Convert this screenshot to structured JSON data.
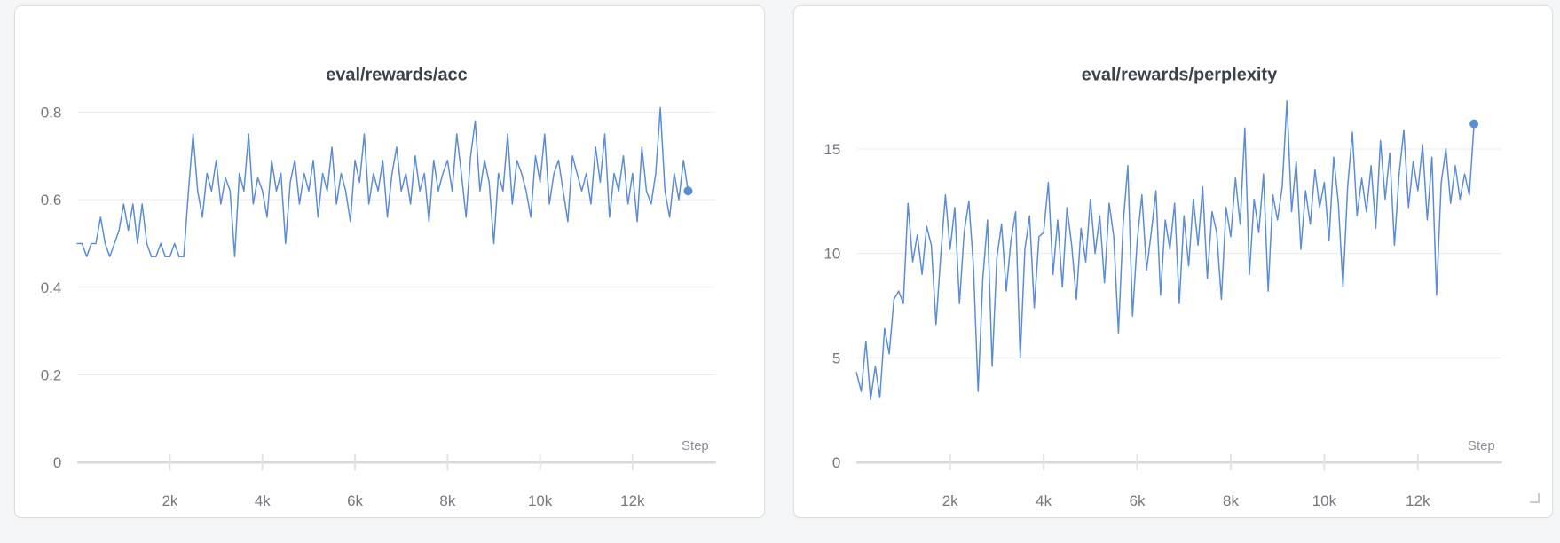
{
  "page": {
    "background": "#f5f6f7",
    "card_background": "#ffffff"
  },
  "chart_data": [
    {
      "type": "line",
      "title": "eval/rewards/acc",
      "xlabel": "Step",
      "ylabel": "",
      "legend": "none",
      "grid": "horizontal",
      "line_color": "#5a8dd6",
      "end_marker": true,
      "ylim": [
        0,
        0.84
      ],
      "xlim": [
        0,
        13800
      ],
      "yticks": [
        0,
        0.2,
        0.4,
        0.6,
        0.8
      ],
      "ytick_labels": [
        "0",
        "0.2",
        "0.4",
        "0.6",
        "0.8"
      ],
      "xticks": [
        2000,
        4000,
        6000,
        8000,
        10000,
        12000
      ],
      "xtick_labels": [
        "2k",
        "4k",
        "6k",
        "8k",
        "10k",
        "12k"
      ],
      "x_start": 0,
      "x_step": 100,
      "series": [
        {
          "name": "eval/rewards/acc",
          "values": [
            0.5,
            0.5,
            0.47,
            0.5,
            0.5,
            0.56,
            0.5,
            0.47,
            0.5,
            0.53,
            0.59,
            0.53,
            0.59,
            0.5,
            0.59,
            0.5,
            0.47,
            0.47,
            0.5,
            0.47,
            0.47,
            0.5,
            0.47,
            0.47,
            0.62,
            0.75,
            0.62,
            0.56,
            0.66,
            0.62,
            0.69,
            0.59,
            0.65,
            0.62,
            0.47,
            0.66,
            0.62,
            0.75,
            0.59,
            0.65,
            0.62,
            0.56,
            0.69,
            0.62,
            0.66,
            0.5,
            0.64,
            0.69,
            0.59,
            0.66,
            0.62,
            0.69,
            0.56,
            0.66,
            0.62,
            0.72,
            0.59,
            0.66,
            0.62,
            0.55,
            0.69,
            0.64,
            0.75,
            0.59,
            0.66,
            0.62,
            0.69,
            0.56,
            0.66,
            0.72,
            0.62,
            0.66,
            0.59,
            0.7,
            0.62,
            0.66,
            0.55,
            0.69,
            0.62,
            0.66,
            0.69,
            0.62,
            0.75,
            0.66,
            0.56,
            0.7,
            0.78,
            0.62,
            0.69,
            0.64,
            0.5,
            0.66,
            0.62,
            0.75,
            0.59,
            0.69,
            0.66,
            0.62,
            0.56,
            0.7,
            0.64,
            0.75,
            0.59,
            0.66,
            0.69,
            0.62,
            0.55,
            0.7,
            0.66,
            0.62,
            0.66,
            0.59,
            0.72,
            0.64,
            0.75,
            0.56,
            0.66,
            0.62,
            0.7,
            0.59,
            0.66,
            0.55,
            0.72,
            0.62,
            0.59,
            0.66,
            0.81,
            0.62,
            0.56,
            0.66,
            0.6,
            0.69,
            0.62
          ]
        }
      ]
    },
    {
      "type": "line",
      "title": "eval/rewards/perplexity",
      "xlabel": "Step",
      "ylabel": "",
      "legend": "none",
      "grid": "horizontal",
      "line_color": "#5a8dd6",
      "end_marker": true,
      "ylim": [
        0,
        17.6
      ],
      "xlim": [
        0,
        13800
      ],
      "yticks": [
        0,
        5,
        10,
        15
      ],
      "ytick_labels": [
        "0",
        "5",
        "10",
        "15"
      ],
      "xticks": [
        2000,
        4000,
        6000,
        8000,
        10000,
        12000
      ],
      "xtick_labels": [
        "2k",
        "4k",
        "6k",
        "8k",
        "10k",
        "12k"
      ],
      "x_start": 0,
      "x_step": 100,
      "series": [
        {
          "name": "eval/rewards/perplexity",
          "values": [
            4.3,
            3.4,
            5.8,
            3.0,
            4.6,
            3.1,
            6.4,
            5.2,
            7.8,
            8.2,
            7.6,
            12.4,
            9.6,
            10.9,
            9.0,
            11.3,
            10.4,
            6.6,
            9.9,
            12.8,
            10.2,
            12.2,
            7.6,
            11.0,
            12.5,
            9.4,
            3.4,
            8.8,
            11.6,
            4.6,
            9.8,
            11.4,
            8.2,
            10.6,
            12.0,
            5.0,
            10.2,
            11.8,
            7.4,
            10.8,
            11.0,
            13.4,
            9.0,
            11.6,
            8.4,
            12.2,
            10.4,
            7.8,
            11.2,
            9.6,
            12.6,
            10.0,
            11.8,
            8.6,
            12.4,
            10.8,
            6.2,
            11.4,
            14.2,
            7.0,
            10.6,
            12.8,
            9.2,
            11.0,
            13.0,
            8.0,
            11.6,
            10.2,
            12.4,
            7.6,
            11.8,
            9.4,
            12.6,
            10.4,
            13.2,
            8.8,
            12.0,
            11.0,
            7.8,
            12.2,
            10.8,
            13.6,
            11.4,
            16.0,
            9.0,
            12.6,
            11.0,
            13.8,
            8.2,
            12.8,
            11.6,
            13.2,
            17.3,
            12.0,
            14.4,
            10.2,
            13.0,
            11.4,
            14.0,
            12.2,
            13.4,
            10.6,
            14.6,
            12.4,
            8.4,
            13.2,
            15.8,
            11.8,
            13.6,
            12.0,
            14.2,
            11.2,
            15.4,
            12.6,
            14.8,
            10.4,
            13.8,
            15.9,
            12.2,
            14.4,
            13.0,
            15.2,
            11.6,
            14.6,
            8.0,
            13.4,
            15.0,
            12.4,
            14.2,
            12.6,
            13.8,
            12.8,
            16.2
          ]
        }
      ]
    }
  ]
}
